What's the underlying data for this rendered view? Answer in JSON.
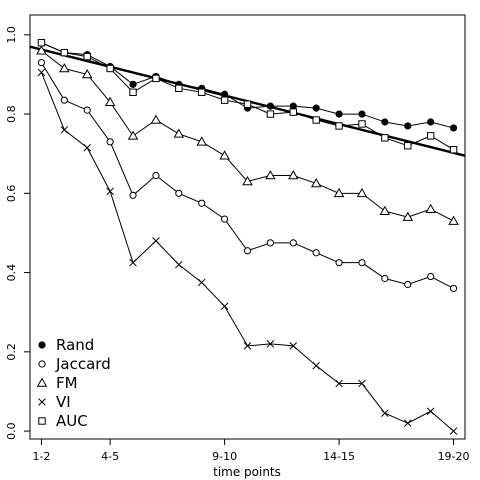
{
  "chart_data": {
    "type": "line",
    "xlabel": "time points",
    "ylabel": "",
    "title": "",
    "xlim": [
      0.5,
      19.5
    ],
    "ylim": [
      -0.02,
      1.05
    ],
    "x_ticks": [
      {
        "x": 1,
        "label": "1-2"
      },
      {
        "x": 4,
        "label": "4-5"
      },
      {
        "x": 9,
        "label": "9-10"
      },
      {
        "x": 14,
        "label": "14-15"
      },
      {
        "x": 19,
        "label": "19-20"
      }
    ],
    "y_ticks": [
      {
        "y": 0.0,
        "label": "0.0"
      },
      {
        "y": 0.2,
        "label": "0.2"
      },
      {
        "y": 0.4,
        "label": "0.4"
      },
      {
        "y": 0.6,
        "label": "0.6"
      },
      {
        "y": 0.8,
        "label": "0.8"
      },
      {
        "y": 1.0,
        "label": "1.0"
      }
    ],
    "x": [
      1,
      2,
      3,
      4,
      5,
      6,
      7,
      8,
      9,
      10,
      11,
      12,
      13,
      14,
      15,
      16,
      17,
      18,
      19
    ],
    "series": [
      {
        "name": "Rand",
        "marker": "filled-circle",
        "values": [
          0.98,
          0.955,
          0.95,
          0.92,
          0.875,
          0.895,
          0.875,
          0.865,
          0.85,
          0.815,
          0.82,
          0.82,
          0.815,
          0.8,
          0.8,
          0.78,
          0.77,
          0.78,
          0.765
        ]
      },
      {
        "name": "Jaccard",
        "marker": "open-circle",
        "values": [
          0.93,
          0.835,
          0.81,
          0.73,
          0.595,
          0.645,
          0.6,
          0.575,
          0.535,
          0.455,
          0.475,
          0.475,
          0.45,
          0.425,
          0.425,
          0.385,
          0.37,
          0.39,
          0.36
        ]
      },
      {
        "name": "FM",
        "marker": "triangle",
        "values": [
          0.96,
          0.915,
          0.9,
          0.83,
          0.745,
          0.785,
          0.75,
          0.73,
          0.695,
          0.63,
          0.645,
          0.645,
          0.625,
          0.6,
          0.6,
          0.555,
          0.54,
          0.56,
          0.53
        ]
      },
      {
        "name": "VI",
        "marker": "cross",
        "values": [
          0.905,
          0.76,
          0.715,
          0.605,
          0.425,
          0.48,
          0.42,
          0.375,
          0.315,
          0.215,
          0.22,
          0.215,
          0.165,
          0.12,
          0.12,
          0.045,
          0.02,
          0.05,
          0.0
        ]
      },
      {
        "name": "AUC",
        "marker": "open-square",
        "values": [
          0.98,
          0.955,
          0.945,
          0.915,
          0.855,
          0.89,
          0.865,
          0.855,
          0.835,
          0.825,
          0.8,
          0.805,
          0.785,
          0.77,
          0.775,
          0.74,
          0.72,
          0.745,
          0.71
        ]
      }
    ],
    "trend_line": {
      "x": [
        0.5,
        19.5
      ],
      "y": [
        0.97,
        0.695
      ]
    },
    "legend_placement": "bottom-left",
    "grid": false
  }
}
